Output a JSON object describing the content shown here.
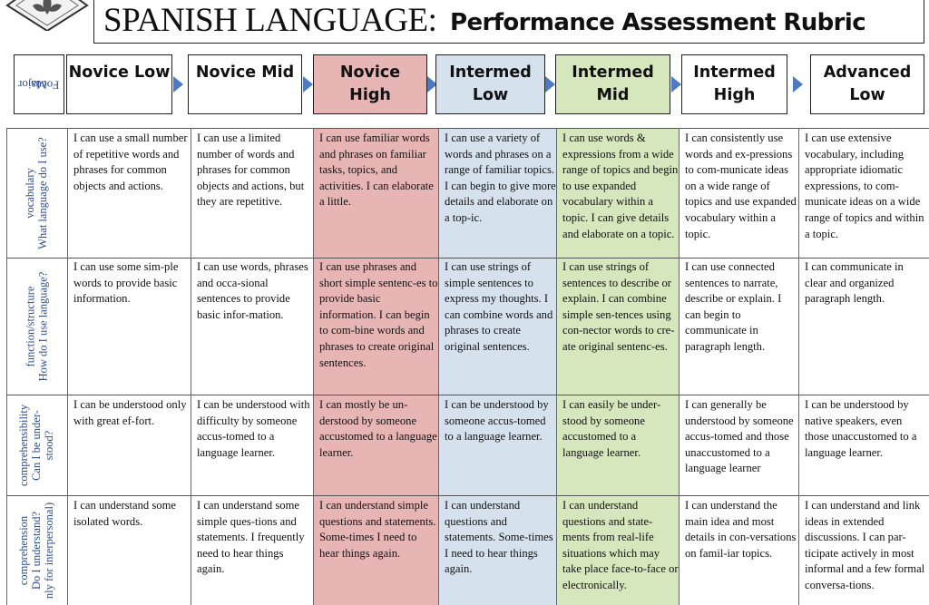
{
  "header": {
    "title_main": "SPANISH LANGUAGE:",
    "title_sub": "Performance Assessment Rubric"
  },
  "focus_label": [
    "Major",
    "Focus"
  ],
  "levels": [
    {
      "line1": "Novice Low",
      "line2": ""
    },
    {
      "line1": "Novice Mid",
      "line2": ""
    },
    {
      "line1": "Novice",
      "line2": "High"
    },
    {
      "line1": "Intermed",
      "line2": "Low"
    },
    {
      "line1": "Intermed",
      "line2": "Mid"
    },
    {
      "line1": "Intermed",
      "line2": "High"
    },
    {
      "line1": "Advanced",
      "line2": "Low"
    }
  ],
  "colors": {
    "novice_high": "#e8b5b5",
    "intermed_low": "#d6e1ee",
    "intermed_mid": "#d6e6bd",
    "arrow": "#4c7bc3",
    "label_blue": "#2d4d8c"
  },
  "rows": [
    {
      "label": [
        "vocabulary",
        "What language do I use?"
      ],
      "cells": [
        "I can use a small number of repetitive words and phrases for common objects and actions.",
        "I can use a limited number of words and phrases for common objects and actions, but they are repetitive.",
        "I can use familiar words and phrases on familiar tasks, topics, and activities. I can elaborate a little.",
        "I can use a variety of words and phrases on a range of familiar topics. I can begin to give more details and elaborate on a top-ic.",
        "I can use words & expressions from a wide range of topics and begin to use expanded vocabulary within a topic. I can give details and elaborate on a topic.",
        "I can consistently use words and ex-pressions to com-municate ideas on a wide range of topics and use expanded vocabulary within a topic.",
        "I can use extensive vocabulary, including appropriate idiomatic expressions, to com-municate ideas on a wide range of topics and within a topic."
      ]
    },
    {
      "label": [
        "function/structure",
        "How do I use language?"
      ],
      "cells": [
        "I can use some sim-ple words to provide basic information.",
        "I can use words, phrases and occa-sional sentences to provide basic infor-mation.",
        "I can use phrases and short simple sentenc-es to provide basic information. I can begin to com-bine words and phrases to create original sentences.",
        "I can use strings of simple sentences to express my thoughts. I can combine words and phrases to create original sentences.",
        "I can use strings of sentences to describe or explain. I can combine simple sen-tences using con-nector words to cre-ate original sentenc-es.",
        "I can use connected sentences to narrate, describe or explain. I can begin to communicate in paragraph length.",
        "I can communicate in clear and organized paragraph length."
      ]
    },
    {
      "label": [
        "comprehensibility",
        "Can I be under-",
        "stood?"
      ],
      "cells": [
        "I can be understood only with great ef-fort.",
        "I can be understood with difficulty by someone accus-tomed to a language learner.",
        "I can mostly be un-derstood by someone accustomed to a language learner.",
        "I can be understood by someone accus-tomed to a language learner.",
        "I can easily be under-stood by someone accustomed to a language learner.",
        "I can generally be understood by someone accus-tomed and those unaccustomed to a language learner",
        "I can be understood by native speakers, even those unaccustomed to a language learner."
      ]
    },
    {
      "label": [
        "comprehension",
        "Do I understand?",
        "nly for interpersonal)"
      ],
      "cells": [
        "I can understand some isolated words.",
        "I can understand some simple ques-tions and statements. I frequently need to hear things again.",
        "I can understand simple questions and statements. Some-times I need to hear things again.",
        "I can understand questions and statements. Some-times I need to hear things again.",
        "I can understand questions and state-ments from real-life situations which may take place face-to-face or electronically.",
        "I can understand the main idea and most details in con-versations on famil-iar topics.",
        "I can understand and link ideas in extended discussions. I can par-ticipate actively in most informal and a few formal conversa-tions."
      ]
    }
  ]
}
